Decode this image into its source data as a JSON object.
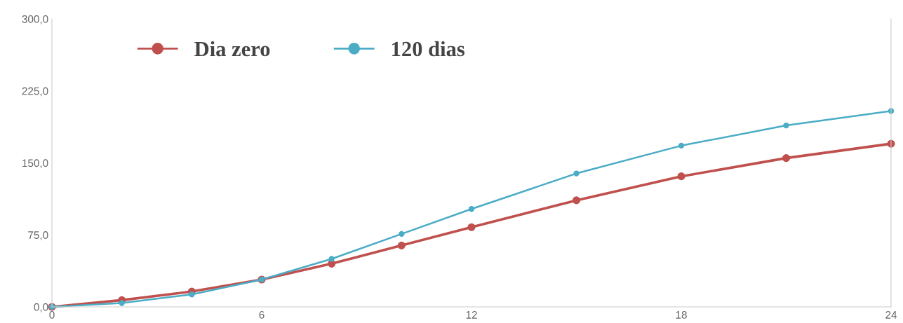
{
  "chart_data": {
    "type": "line",
    "x": [
      0,
      2,
      4,
      6,
      8,
      10,
      12,
      15,
      18,
      21,
      24
    ],
    "series": [
      {
        "name": "Dia zero",
        "color": "#c0504d",
        "values": [
          0,
          7,
          16,
          28.5,
          45,
          64,
          83,
          111,
          136,
          155,
          170
        ]
      },
      {
        "name": "120 dias",
        "color": "#4bacc6",
        "values": [
          0,
          4,
          13,
          28.5,
          50,
          76,
          102,
          139,
          168,
          189,
          204
        ]
      }
    ],
    "xlim": [
      0,
      24
    ],
    "xticks": [
      0,
      6,
      12,
      18,
      24
    ],
    "ylim": [
      0,
      300
    ],
    "yticks": [
      {
        "value": 0,
        "label": "0,0"
      },
      {
        "value": 75,
        "label": "75,0"
      },
      {
        "value": 150,
        "label": "150,0"
      },
      {
        "value": 225,
        "label": "225,0"
      },
      {
        "value": 300,
        "label": "300,0"
      }
    ],
    "grid": false,
    "legend": "top left",
    "marker": "circle",
    "line_style": "solid"
  }
}
